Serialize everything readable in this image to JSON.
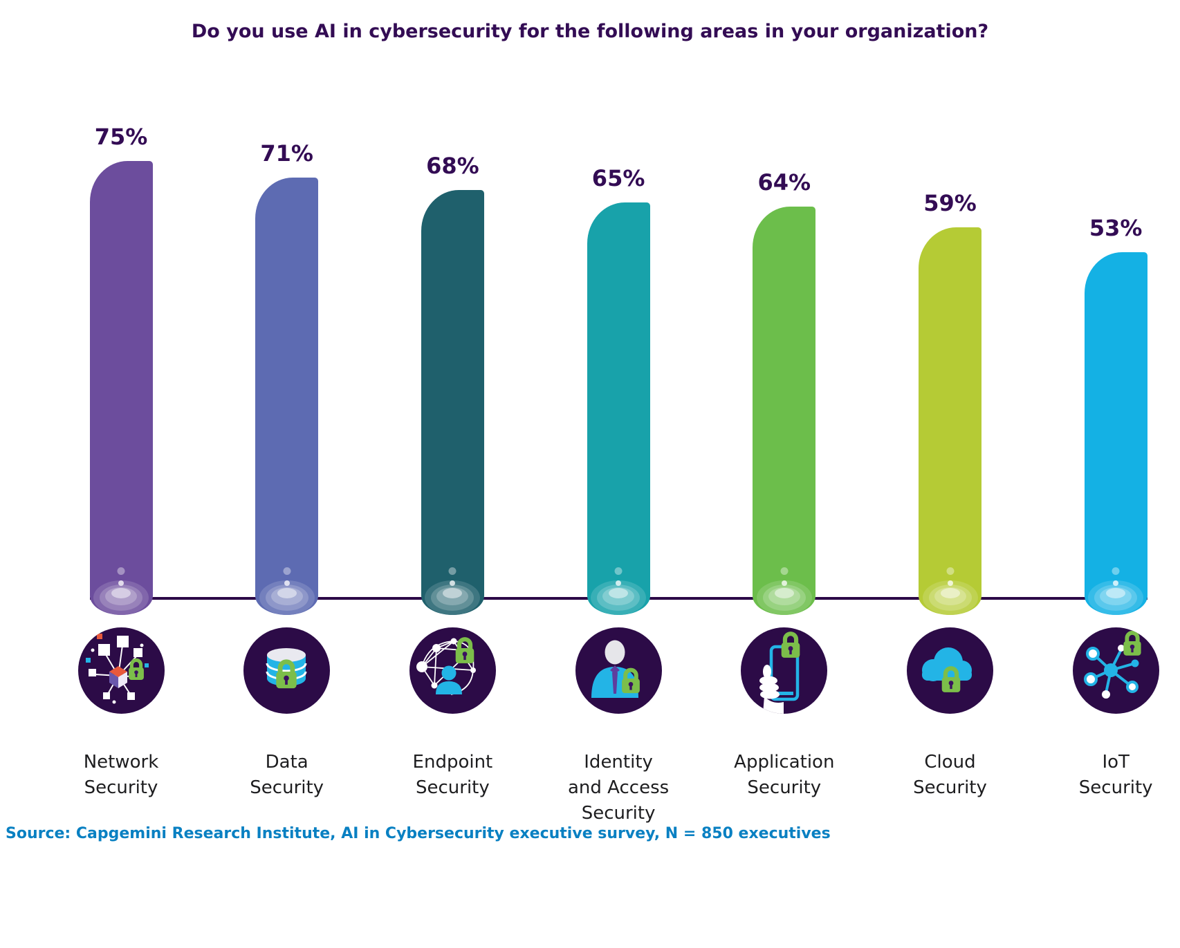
{
  "title": "Do you use AI in cybersecurity for the following areas in your organization?",
  "source": "Source: Capgemini Research Institute, AI in Cybersecurity executive survey, N = 850 executives",
  "colors": {
    "title_text": "#330C54",
    "value_label_text": "#330C54",
    "axis_line": "#2C0A47",
    "icon_circle_bg": "#2C0B47",
    "category_label_text": "#1D1D1F",
    "source_text": "#0980C2",
    "lock_green": "#7CBE4A",
    "lock_keyhole": "#3A1160",
    "icon_cyan": "#23B4E6",
    "icon_white": "#FFFFFF",
    "icon_orange": "#E8593C",
    "icon_purple": "#5F3D9E",
    "icon_light_gray": "#E6E6EA"
  },
  "chart_data": {
    "type": "bar",
    "title": "Do you use AI in cybersecurity for the following areas in your organization?",
    "categories": [
      "Network Security",
      "Data Security",
      "Endpoint Security",
      "Identity and Access Security",
      "Application Security",
      "Cloud Security",
      "IoT Security"
    ],
    "category_label_lines": [
      [
        "Network",
        "Security"
      ],
      [
        "Data",
        "Security"
      ],
      [
        "Endpoint",
        "Security"
      ],
      [
        "Identity",
        "and Access",
        "Security"
      ],
      [
        "Application",
        "Security"
      ],
      [
        "Cloud",
        "Security"
      ],
      [
        "IoT",
        "Security"
      ]
    ],
    "values": [
      75,
      71,
      68,
      65,
      64,
      59,
      53
    ],
    "value_labels": [
      "75%",
      "71%",
      "68%",
      "65%",
      "64%",
      "59%",
      "53%"
    ],
    "bar_colors": [
      "#6C4D9D",
      "#5D6BB2",
      "#1F606C",
      "#18A2AA",
      "#6CBE4B",
      "#B5CB35",
      "#14B1E4"
    ],
    "icons": [
      "network-security-icon",
      "data-security-icon",
      "endpoint-security-icon",
      "identity-access-security-icon",
      "application-security-icon",
      "cloud-security-icon",
      "iot-security-icon"
    ],
    "xlabel": "",
    "ylabel": "",
    "ylim": [
      0,
      100
    ],
    "grid": false,
    "legend": false,
    "source": "Source: Capgemini Research Institute, AI in Cybersecurity executive survey, N = 850 executives"
  }
}
